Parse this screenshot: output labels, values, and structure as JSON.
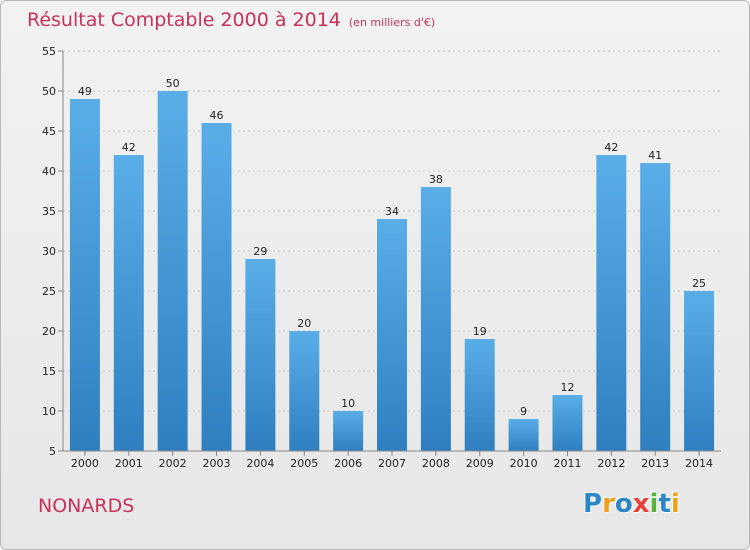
{
  "chart_data": {
    "type": "bar",
    "title": "Résultat Comptable 2000 à 2014",
    "subtitle": "(en milliers d'€)",
    "categories": [
      "2000",
      "2001",
      "2002",
      "2003",
      "2004",
      "2005",
      "2006",
      "2007",
      "2008",
      "2009",
      "2010",
      "2011",
      "2012",
      "2013",
      "2014"
    ],
    "values": [
      49,
      42,
      50,
      46,
      29,
      20,
      10,
      34,
      38,
      19,
      9,
      12,
      42,
      41,
      25
    ],
    "ylim": [
      5,
      55
    ],
    "yticks": [
      5,
      10,
      15,
      20,
      25,
      30,
      35,
      40,
      45,
      50,
      55
    ],
    "grid": "horizontal dashed",
    "legend": "none",
    "bar_color_top": "#5aaee8",
    "bar_color_bottom": "#2f7fc0"
  },
  "footer": {
    "commune": "NONARDS",
    "logo_letters": [
      {
        "ch": "P",
        "color": "#2d86c8"
      },
      {
        "ch": "r",
        "color": "#f0a020"
      },
      {
        "ch": "o",
        "color": "#2d86c8"
      },
      {
        "ch": "x",
        "color": "#e8403a"
      },
      {
        "ch": "i",
        "color": "#5ab040"
      },
      {
        "ch": "t",
        "color": "#2d86c8"
      },
      {
        "ch": "i",
        "color": "#f0a020"
      }
    ]
  }
}
